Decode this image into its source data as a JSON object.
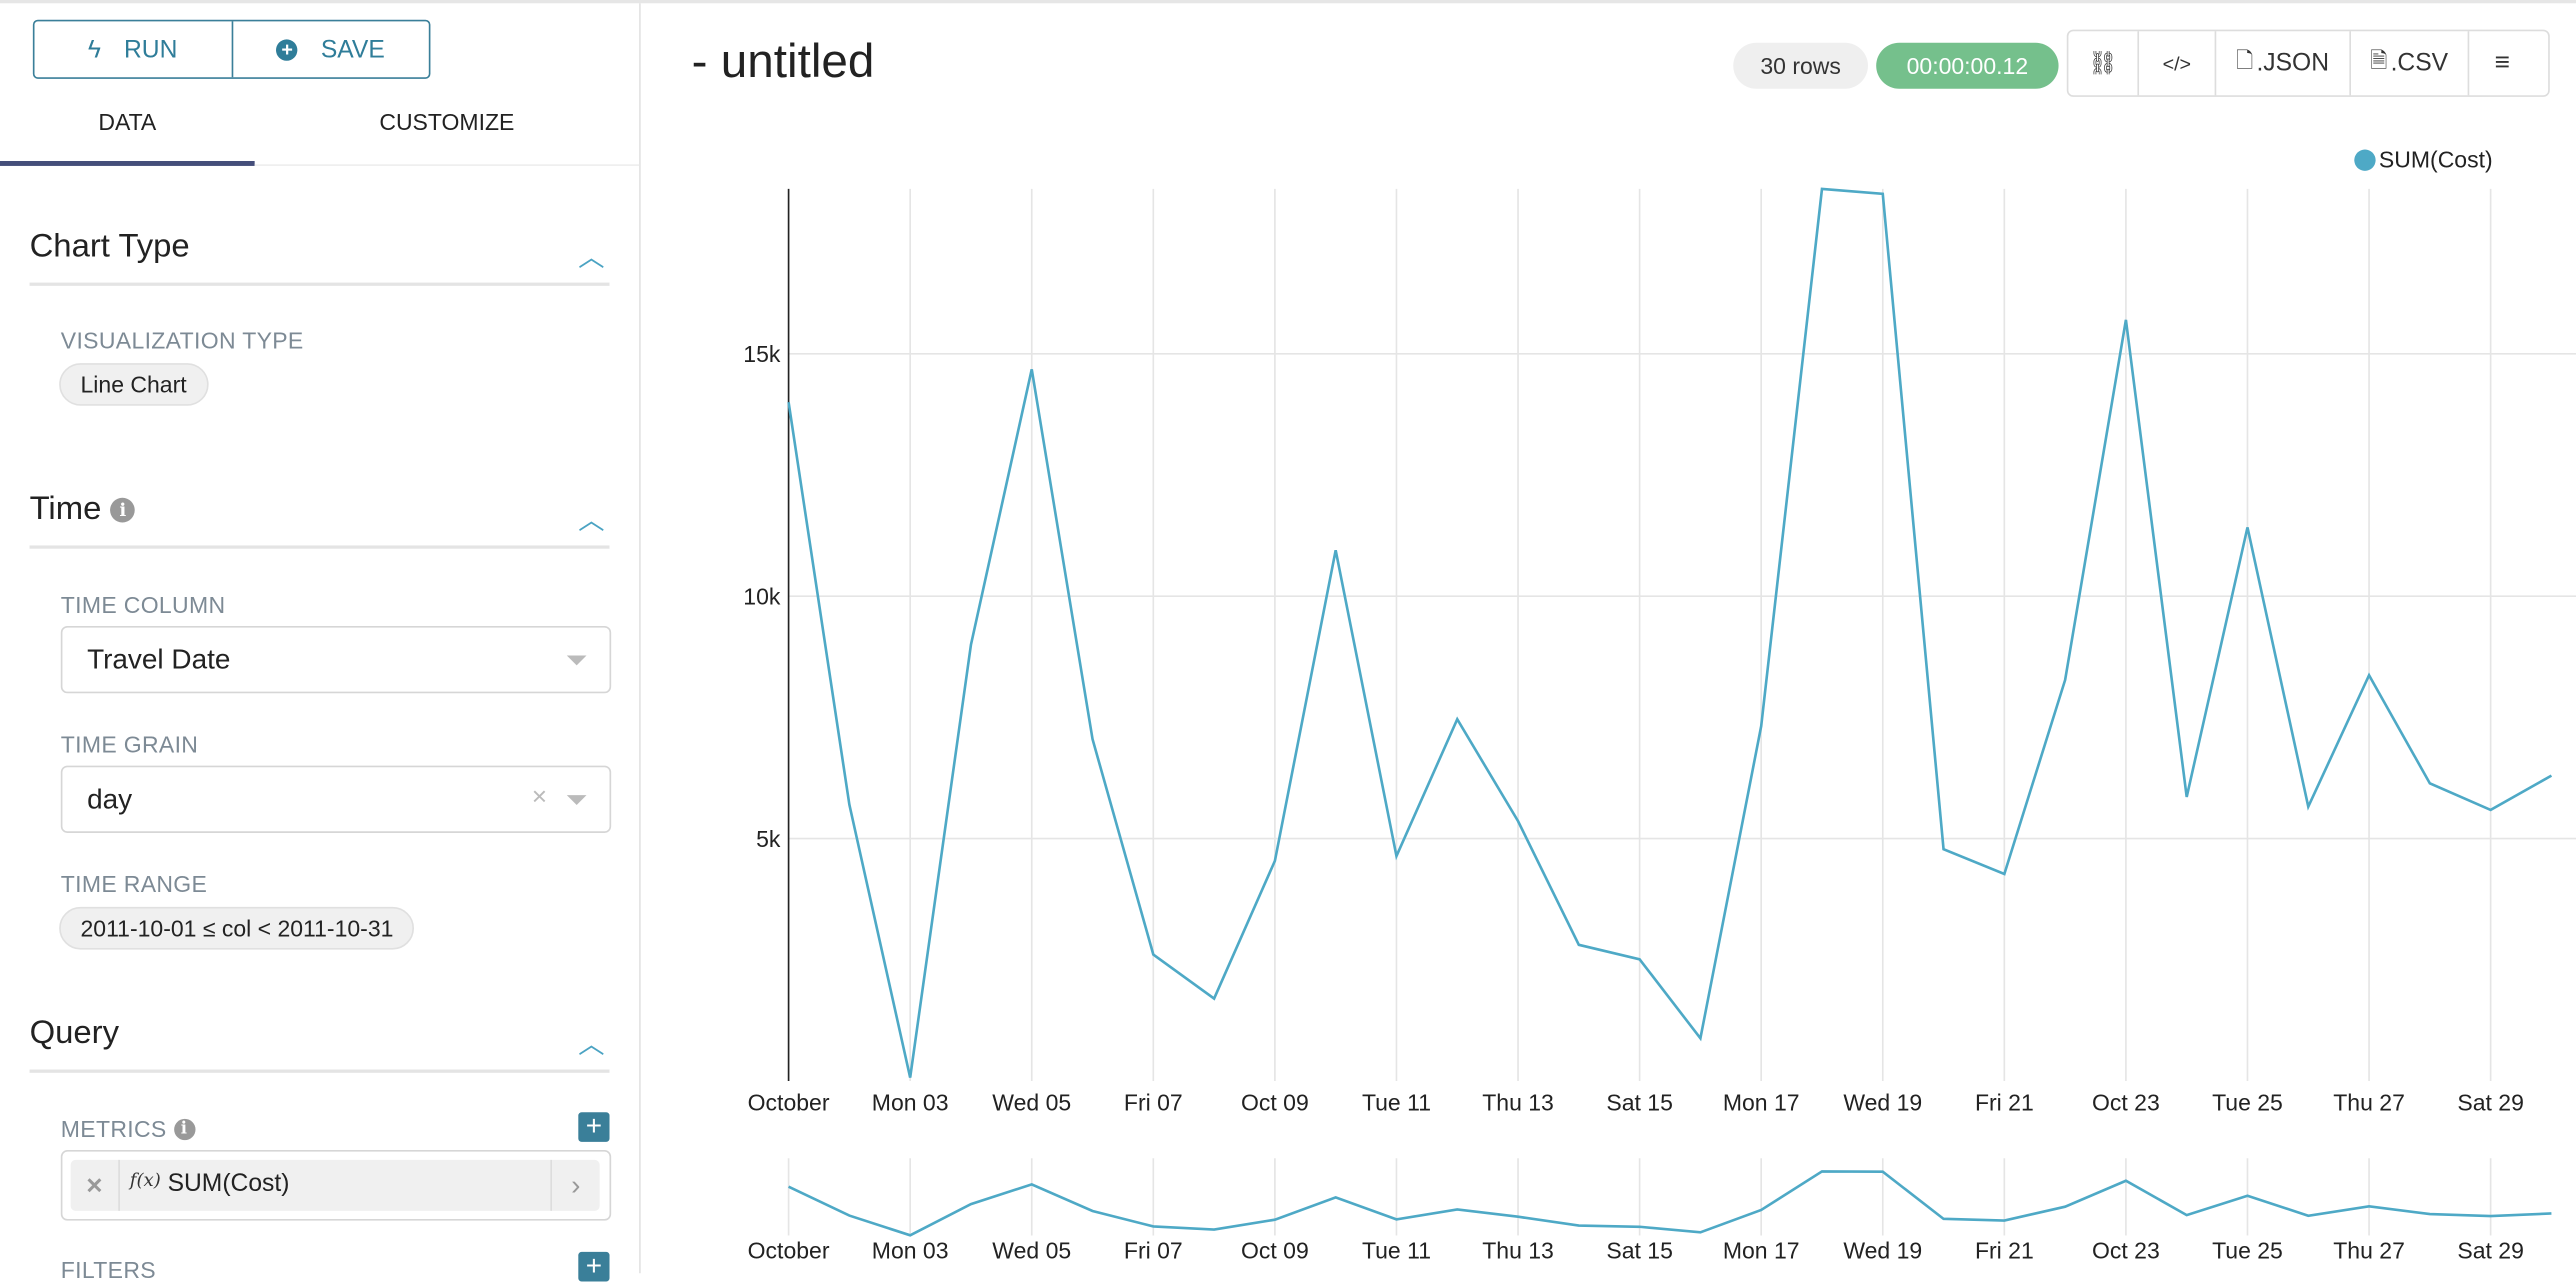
{
  "toolbar": {
    "run_label": "RUN",
    "save_label": "SAVE"
  },
  "tabs": [
    {
      "label": "DATA",
      "active": true
    },
    {
      "label": "CUSTOMIZE",
      "active": false
    }
  ],
  "sections": {
    "chart_type": {
      "title": "Chart Type",
      "viz_label": "VISUALIZATION TYPE",
      "viz_value": "Line Chart"
    },
    "time": {
      "title": "Time",
      "time_column_label": "TIME COLUMN",
      "time_column_value": "Travel Date",
      "time_grain_label": "TIME GRAIN",
      "time_grain_value": "day",
      "time_range_label": "TIME RANGE",
      "time_range_value": "2011-10-01 ≤ col < 2011-10-31"
    },
    "query": {
      "title": "Query",
      "metrics_label": "METRICS",
      "metric_value": "SUM(Cost)",
      "metric_fx": "f(x)",
      "filters_label": "FILTERS"
    }
  },
  "header": {
    "title": "- untitled",
    "rows_badge": "30 rows",
    "timer_badge": "00:00:00.12",
    "json_label": ".JSON",
    "csv_label": ".CSV"
  },
  "colors": {
    "accent": "#3a7f99",
    "series": "#4ea9c6",
    "timer": "#75c08c"
  },
  "chart_data": {
    "type": "line",
    "legend": {
      "entries": [
        "SUM(Cost)"
      ],
      "placement": "top-right"
    },
    "x": [
      "2011-10-01",
      "2011-10-02",
      "2011-10-03",
      "2011-10-04",
      "2011-10-05",
      "2011-10-06",
      "2011-10-07",
      "2011-10-08",
      "2011-10-09",
      "2011-10-10",
      "2011-10-11",
      "2011-10-12",
      "2011-10-13",
      "2011-10-14",
      "2011-10-15",
      "2011-10-16",
      "2011-10-17",
      "2011-10-18",
      "2011-10-19",
      "2011-10-20",
      "2011-10-21",
      "2011-10-22",
      "2011-10-23",
      "2011-10-24",
      "2011-10-25",
      "2011-10-26",
      "2011-10-27",
      "2011-10-28",
      "2011-10-29",
      "2011-10-30"
    ],
    "series": [
      {
        "name": "SUM(Cost)",
        "values": [
          14000,
          5700,
          70,
          9000,
          14680,
          7050,
          2610,
          1700,
          4540,
          10950,
          4640,
          7460,
          5360,
          2810,
          2510,
          880,
          7320,
          18400,
          18300,
          4780,
          4270,
          8270,
          15700,
          5860,
          11420,
          5660,
          8370,
          6140,
          5590,
          6300
        ]
      }
    ],
    "x_tick_labels": [
      "October",
      "Mon 03",
      "Wed 05",
      "Fri 07",
      "Oct 09",
      "Tue 11",
      "Thu 13",
      "Sat 15",
      "Mon 17",
      "Wed 19",
      "Fri 21",
      "Oct 23",
      "Tue 25",
      "Thu 27",
      "Sat 29"
    ],
    "y_ticks": [
      5000,
      10000,
      15000
    ],
    "y_tick_labels": [
      "5k",
      "10k",
      "15k"
    ],
    "ylim": [
      0,
      18400
    ],
    "grid": true,
    "brush_preview": true
  }
}
